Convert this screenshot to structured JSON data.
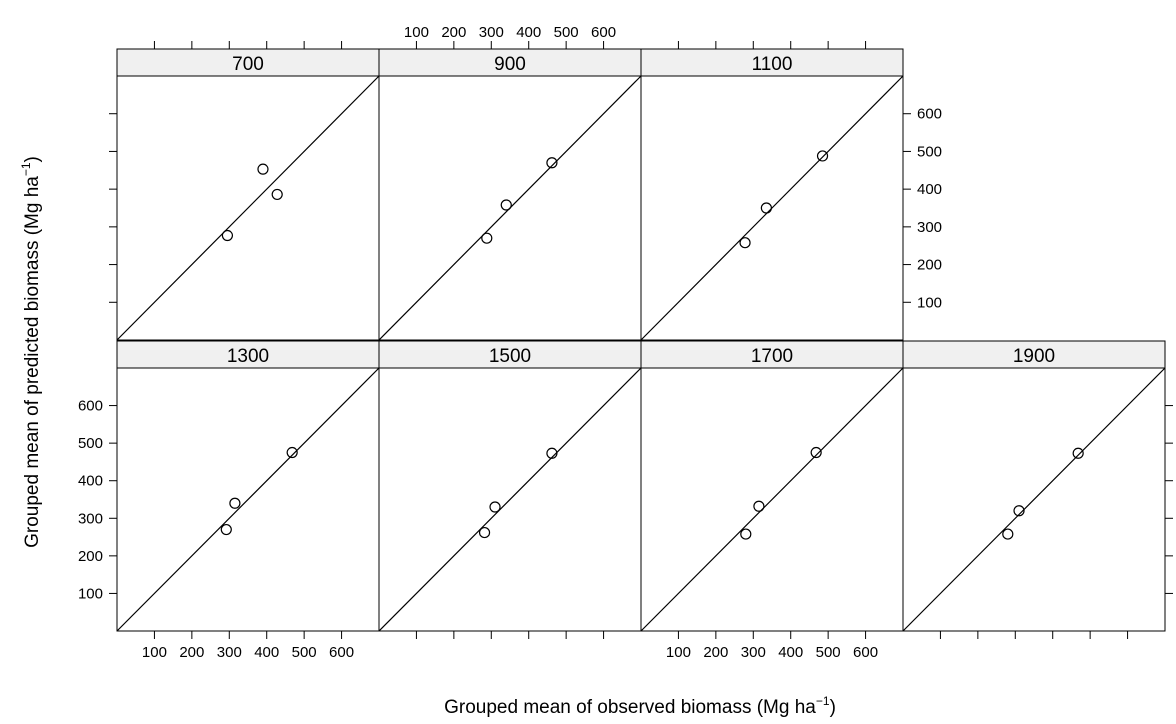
{
  "chart_data": {
    "type": "scatter",
    "layout": "trellis",
    "xlabel": {
      "main": "Grouped mean of observed biomass (Mg ha",
      "sup": "−1",
      "tail": ")"
    },
    "ylabel": {
      "main": "Grouped mean of predicted biomass (Mg ha",
      "sup": "−1",
      "tail": ")"
    },
    "xlim": [
      0,
      700
    ],
    "ylim": [
      0,
      700
    ],
    "ticks": [
      100,
      200,
      300,
      400,
      500,
      600
    ],
    "reference_line": "y = x",
    "panels": [
      {
        "label": "700",
        "points": [
          {
            "x": 295,
            "y": 277
          },
          {
            "x": 390,
            "y": 453
          },
          {
            "x": 428,
            "y": 386
          }
        ]
      },
      {
        "label": "900",
        "points": [
          {
            "x": 288,
            "y": 270
          },
          {
            "x": 340,
            "y": 358
          },
          {
            "x": 462,
            "y": 470
          }
        ]
      },
      {
        "label": "1100",
        "points": [
          {
            "x": 278,
            "y": 258
          },
          {
            "x": 335,
            "y": 350
          },
          {
            "x": 485,
            "y": 488
          }
        ]
      },
      {
        "label": "1300",
        "points": [
          {
            "x": 292,
            "y": 270
          },
          {
            "x": 315,
            "y": 340
          },
          {
            "x": 468,
            "y": 475
          }
        ]
      },
      {
        "label": "1500",
        "points": [
          {
            "x": 282,
            "y": 262
          },
          {
            "x": 310,
            "y": 330
          },
          {
            "x": 462,
            "y": 473
          }
        ]
      },
      {
        "label": "1700",
        "points": [
          {
            "x": 280,
            "y": 258
          },
          {
            "x": 315,
            "y": 332
          },
          {
            "x": 468,
            "y": 475
          }
        ]
      },
      {
        "label": "1900",
        "points": [
          {
            "x": 280,
            "y": 258
          },
          {
            "x": 310,
            "y": 320
          },
          {
            "x": 468,
            "y": 473
          }
        ]
      }
    ]
  }
}
